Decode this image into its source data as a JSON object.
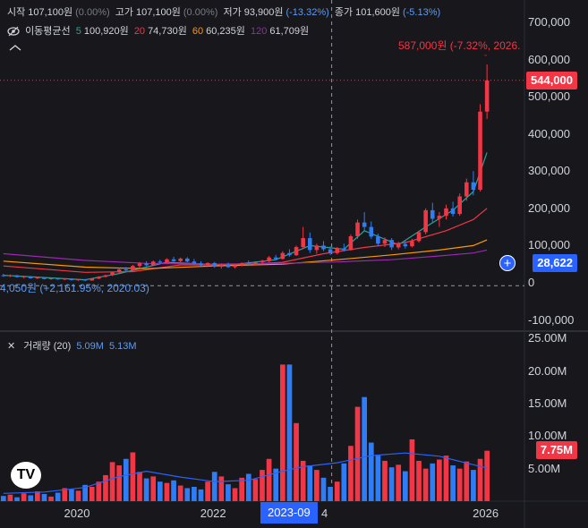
{
  "header": {
    "open_label": "시작",
    "open_value": "107,100원",
    "open_pct": "(0.00%)",
    "high_label": "고가",
    "high_value": "107,100원",
    "high_pct": "(0.00%)",
    "low_label": "저가",
    "low_value": "93,900원",
    "low_pct": "(-13.32%)",
    "close_label": "종가",
    "close_value": "101,600원",
    "close_pct": "(-5.13%)"
  },
  "ma_legend": {
    "title": "이동평균선",
    "ma5_period": "5",
    "ma5_value": "100,920원",
    "ma20_period": "20",
    "ma20_value": "74,730원",
    "ma60_period": "60",
    "ma60_value": "60,235원",
    "ma120_period": "120",
    "ma120_value": "61,709원"
  },
  "volume_legend": {
    "title": "거래량 (20)",
    "value1": "5.09M",
    "value2": "5.13M"
  },
  "annotations": {
    "high": "587,000원 (-7.32%, 2026.",
    "low": "4,050원 (+2,161.95%, 2020.03)"
  },
  "price_tags": {
    "last": "544,000",
    "crosshair": "28,622",
    "volume_last": "7.75M"
  },
  "crosshair_x_label": "2023-09",
  "colors": {
    "up": "#f23645",
    "down": "#2f7df6",
    "ma5": "#26a69a",
    "ma20": "#f23645",
    "ma60": "#ff9800",
    "ma120": "#9c27b0",
    "vol_ma": "#2962ff"
  },
  "chart_data": [
    {
      "type": "candlestick",
      "title": "",
      "y_ticks": [
        "700,000",
        "600,000",
        "500,000",
        "400,000",
        "300,000",
        "200,000",
        "100,000",
        "0",
        "-100,000"
      ],
      "y_tick_values": [
        700000,
        600000,
        500000,
        400000,
        300000,
        200000,
        100000,
        0,
        -100000
      ],
      "ylim": [
        -130000,
        760000
      ],
      "x_ticks": [
        "2020",
        "2022",
        "2026"
      ],
      "x_tick_positions": [
        2020.0,
        2022.0,
        2026.0
      ],
      "xlim": [
        2018.85,
        2026.55
      ],
      "series_note": "monthly candles, values in KRW",
      "candles": [
        [
          2018.9,
          20000,
          24000,
          16000,
          18000
        ],
        [
          2019.0,
          18000,
          22000,
          15000,
          20000
        ],
        [
          2019.1,
          20000,
          21000,
          14000,
          15000
        ],
        [
          2019.2,
          15000,
          19000,
          12000,
          17000
        ],
        [
          2019.3,
          17000,
          18000,
          11000,
          12000
        ],
        [
          2019.4,
          12000,
          16000,
          10000,
          14000
        ],
        [
          2019.5,
          14000,
          15000,
          9000,
          10000
        ],
        [
          2019.6,
          10000,
          14000,
          8000,
          12000
        ],
        [
          2019.7,
          12000,
          13000,
          8000,
          9000
        ],
        [
          2019.8,
          9000,
          12000,
          7000,
          11000
        ],
        [
          2019.9,
          11000,
          12000,
          6000,
          7000
        ],
        [
          2020.0,
          7000,
          10000,
          5000,
          9000
        ],
        [
          2020.1,
          9000,
          10000,
          4050,
          6000
        ],
        [
          2020.2,
          6000,
          12000,
          5000,
          11000
        ],
        [
          2020.3,
          11000,
          18000,
          10000,
          16000
        ],
        [
          2020.4,
          16000,
          22000,
          14000,
          20000
        ],
        [
          2020.5,
          20000,
          30000,
          18000,
          28000
        ],
        [
          2020.6,
          28000,
          40000,
          26000,
          36000
        ],
        [
          2020.7,
          36000,
          42000,
          30000,
          33000
        ],
        [
          2020.8,
          33000,
          48000,
          31000,
          45000
        ],
        [
          2020.9,
          45000,
          56000,
          40000,
          52000
        ],
        [
          2021.0,
          52000,
          58000,
          44000,
          47000
        ],
        [
          2021.1,
          47000,
          60000,
          45000,
          57000
        ],
        [
          2021.2,
          57000,
          62000,
          50000,
          54000
        ],
        [
          2021.3,
          54000,
          66000,
          52000,
          63000
        ],
        [
          2021.4,
          63000,
          70000,
          56000,
          58000
        ],
        [
          2021.5,
          58000,
          68000,
          55000,
          65000
        ],
        [
          2021.6,
          65000,
          69000,
          55000,
          57000
        ],
        [
          2021.7,
          57000,
          64000,
          50000,
          52000
        ],
        [
          2021.8,
          52000,
          58000,
          45000,
          48000
        ],
        [
          2021.9,
          48000,
          55000,
          42000,
          53000
        ],
        [
          2022.0,
          53000,
          56000,
          40000,
          43000
        ],
        [
          2022.1,
          43000,
          52000,
          38000,
          49000
        ],
        [
          2022.2,
          49000,
          54000,
          40000,
          42000
        ],
        [
          2022.3,
          42000,
          50000,
          38000,
          47000
        ],
        [
          2022.4,
          47000,
          55000,
          44000,
          52000
        ],
        [
          2022.5,
          52000,
          60000,
          45000,
          48000
        ],
        [
          2022.6,
          48000,
          58000,
          46000,
          55000
        ],
        [
          2022.7,
          55000,
          62000,
          50000,
          58000
        ],
        [
          2022.8,
          58000,
          72000,
          55000,
          68000
        ],
        [
          2022.9,
          68000,
          75000,
          60000,
          64000
        ],
        [
          2023.0,
          64000,
          85000,
          62000,
          80000
        ],
        [
          2023.1,
          80000,
          90000,
          70000,
          74000
        ],
        [
          2023.2,
          74000,
          100000,
          72000,
          96000
        ],
        [
          2023.3,
          96000,
          150000,
          90000,
          120000
        ],
        [
          2023.4,
          120000,
          135000,
          80000,
          88000
        ],
        [
          2023.5,
          88000,
          105000,
          78000,
          100000
        ],
        [
          2023.6,
          100000,
          112000,
          85000,
          90000
        ],
        [
          2023.7,
          90000,
          98000,
          75000,
          80000
        ],
        [
          2023.8,
          80000,
          96000,
          76000,
          92000
        ],
        [
          2023.9,
          92000,
          105000,
          84000,
          88000
        ],
        [
          2024.0,
          88000,
          130000,
          86000,
          125000
        ],
        [
          2024.1,
          125000,
          170000,
          118000,
          162000
        ],
        [
          2024.2,
          162000,
          190000,
          140000,
          150000
        ],
        [
          2024.3,
          150000,
          165000,
          118000,
          124000
        ],
        [
          2024.4,
          124000,
          132000,
          98000,
          105000
        ],
        [
          2024.5,
          105000,
          122000,
          96000,
          115000
        ],
        [
          2024.6,
          115000,
          120000,
          88000,
          95000
        ],
        [
          2024.7,
          95000,
          110000,
          90000,
          104000
        ],
        [
          2024.8,
          104000,
          112000,
          92000,
          98000
        ],
        [
          2024.9,
          98000,
          118000,
          95000,
          112000
        ],
        [
          2025.0,
          112000,
          140000,
          108000,
          136000
        ],
        [
          2025.1,
          136000,
          200000,
          130000,
          195000
        ],
        [
          2025.2,
          195000,
          215000,
          160000,
          172000
        ],
        [
          2025.3,
          172000,
          190000,
          150000,
          180000
        ],
        [
          2025.4,
          180000,
          210000,
          170000,
          200000
        ],
        [
          2025.5,
          200000,
          218000,
          178000,
          185000
        ],
        [
          2025.6,
          185000,
          240000,
          180000,
          232000
        ],
        [
          2025.7,
          232000,
          280000,
          220000,
          270000
        ],
        [
          2025.8,
          270000,
          300000,
          235000,
          250000
        ],
        [
          2025.9,
          250000,
          480000,
          245000,
          460000
        ],
        [
          2026.0,
          460000,
          587000,
          440000,
          544000
        ]
      ],
      "ma_series": [
        {
          "name": "5",
          "points": [
            [
              2018.9,
              20000
            ],
            [
              2020.1,
              8000
            ],
            [
              2020.6,
              25000
            ],
            [
              2021.3,
              55000
            ],
            [
              2022.2,
              47000
            ],
            [
              2022.9,
              62000
            ],
            [
              2023.4,
              100000
            ],
            [
              2023.9,
              90000
            ],
            [
              2024.2,
              140000
            ],
            [
              2024.7,
              102000
            ],
            [
              2025.1,
              150000
            ],
            [
              2025.5,
              195000
            ],
            [
              2025.8,
              245000
            ],
            [
              2026.0,
              350000
            ]
          ]
        },
        {
          "name": "20",
          "points": [
            [
              2018.9,
              45000
            ],
            [
              2020.1,
              28000
            ],
            [
              2020.8,
              30000
            ],
            [
              2021.5,
              48000
            ],
            [
              2022.3,
              48000
            ],
            [
              2023.0,
              55000
            ],
            [
              2023.6,
              78000
            ],
            [
              2024.2,
              95000
            ],
            [
              2024.8,
              108000
            ],
            [
              2025.4,
              140000
            ],
            [
              2025.8,
              170000
            ],
            [
              2026.0,
              200000
            ]
          ]
        },
        {
          "name": "60",
          "points": [
            [
              2018.9,
              58000
            ],
            [
              2020.1,
              42000
            ],
            [
              2021.0,
              38000
            ],
            [
              2022.0,
              45000
            ],
            [
              2023.0,
              50000
            ],
            [
              2023.8,
              62000
            ],
            [
              2024.6,
              75000
            ],
            [
              2025.3,
              88000
            ],
            [
              2025.8,
              100000
            ],
            [
              2026.0,
              115000
            ]
          ]
        },
        {
          "name": "120",
          "points": [
            [
              2018.9,
              78000
            ],
            [
              2020.1,
              60000
            ],
            [
              2021.0,
              52000
            ],
            [
              2022.0,
              50000
            ],
            [
              2023.0,
              52000
            ],
            [
              2023.8,
              56000
            ],
            [
              2024.6,
              62000
            ],
            [
              2025.3,
              72000
            ],
            [
              2025.8,
              80000
            ],
            [
              2026.0,
              88000
            ]
          ]
        }
      ]
    },
    {
      "type": "bar",
      "title": "거래량",
      "y_ticks": [
        "25.00M",
        "20.00M",
        "15.00M",
        "10.00M",
        "5.00M"
      ],
      "y_tick_values": [
        25,
        20,
        15,
        10,
        5
      ],
      "ylim": [
        0,
        26
      ],
      "x": [
        2018.9,
        2019.0,
        2019.1,
        2019.2,
        2019.3,
        2019.4,
        2019.5,
        2019.6,
        2019.7,
        2019.8,
        2019.9,
        2020.0,
        2020.1,
        2020.2,
        2020.3,
        2020.4,
        2020.5,
        2020.6,
        2020.7,
        2020.8,
        2020.9,
        2021.0,
        2021.1,
        2021.2,
        2021.3,
        2021.4,
        2021.5,
        2021.6,
        2021.7,
        2021.8,
        2021.9,
        2022.0,
        2022.1,
        2022.2,
        2022.3,
        2022.4,
        2022.5,
        2022.6,
        2022.7,
        2022.8,
        2022.9,
        2023.0,
        2023.1,
        2023.2,
        2023.3,
        2023.4,
        2023.5,
        2023.6,
        2023.7,
        2023.8,
        2023.9,
        2024.0,
        2024.1,
        2024.2,
        2024.3,
        2024.4,
        2024.5,
        2024.6,
        2024.7,
        2024.8,
        2024.9,
        2025.0,
        2025.1,
        2025.2,
        2025.3,
        2025.4,
        2025.5,
        2025.6,
        2025.7,
        2025.8,
        2025.9,
        2026.0
      ],
      "values_millions": [
        0.8,
        1.0,
        0.6,
        1.2,
        0.9,
        1.5,
        1.1,
        0.7,
        1.3,
        2.0,
        1.8,
        1.6,
        2.5,
        2.2,
        3.0,
        4.0,
        6.0,
        5.5,
        6.5,
        7.5,
        4.5,
        3.5,
        3.8,
        3.0,
        2.8,
        3.2,
        2.4,
        2.0,
        2.2,
        1.8,
        3.0,
        4.5,
        3.8,
        2.6,
        2.0,
        3.6,
        4.2,
        3.4,
        4.8,
        6.5,
        5.0,
        21.0,
        21.0,
        12.0,
        6.2,
        5.5,
        4.8,
        3.6,
        2.2,
        3.0,
        5.8,
        8.5,
        14.5,
        16.0,
        9.0,
        7.0,
        6.2,
        5.2,
        5.6,
        4.6,
        9.5,
        6.2,
        5.0,
        5.8,
        6.4,
        7.0,
        5.5,
        5.0,
        6.1,
        4.8,
        6.5,
        7.75
      ],
      "up": [
        false,
        true,
        false,
        true,
        false,
        true,
        false,
        true,
        false,
        true,
        false,
        true,
        false,
        true,
        true,
        true,
        true,
        true,
        false,
        true,
        true,
        false,
        true,
        false,
        true,
        false,
        true,
        false,
        false,
        false,
        true,
        false,
        true,
        false,
        true,
        true,
        false,
        true,
        true,
        true,
        false,
        true,
        false,
        true,
        true,
        false,
        true,
        false,
        false,
        true,
        false,
        true,
        true,
        false,
        false,
        false,
        true,
        false,
        true,
        false,
        true,
        true,
        true,
        false,
        true,
        true,
        false,
        true,
        true,
        false,
        true,
        true
      ],
      "ma_points": [
        [
          2018.9,
          1.2
        ],
        [
          2019.5,
          1.4
        ],
        [
          2020.1,
          2.1
        ],
        [
          2020.6,
          3.8
        ],
        [
          2021.0,
          4.6
        ],
        [
          2021.5,
          3.7
        ],
        [
          2022.0,
          3.0
        ],
        [
          2022.5,
          3.2
        ],
        [
          2023.0,
          4.6
        ],
        [
          2023.3,
          5.3
        ],
        [
          2023.8,
          5.9
        ],
        [
          2024.3,
          7.0
        ],
        [
          2024.8,
          7.4
        ],
        [
          2025.3,
          6.9
        ],
        [
          2025.8,
          5.6
        ],
        [
          2026.0,
          5.1
        ]
      ]
    }
  ]
}
